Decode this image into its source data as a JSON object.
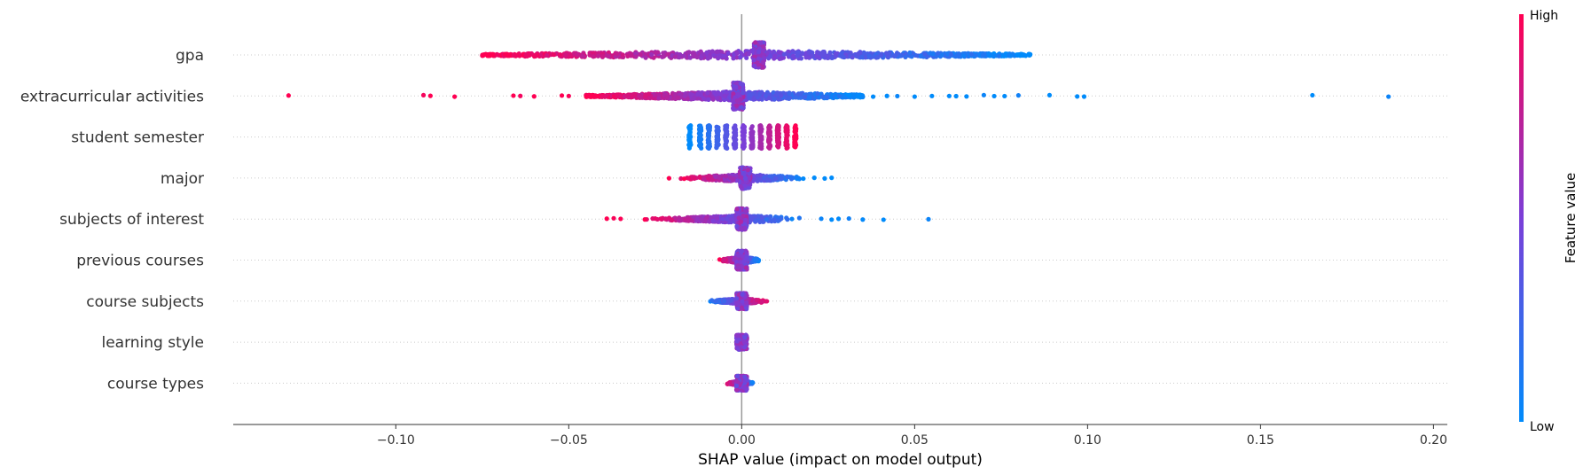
{
  "chart_data": {
    "type": "scatter",
    "subtype": "shap-beeswarm",
    "title": "",
    "xlabel": "SHAP value (impact on model output)",
    "xlim": [
      -0.147,
      0.204
    ],
    "xticks": [
      -0.1,
      -0.05,
      0.0,
      0.05,
      0.1,
      0.15,
      0.2
    ],
    "xtick_labels": [
      "−0.10",
      "−0.05",
      "0.00",
      "0.05",
      "0.10",
      "0.15",
      "0.20"
    ],
    "zero_line": 0.0,
    "grid": false,
    "colorbar": {
      "title": "Feature value",
      "high_label": "High",
      "low_label": "Low",
      "low_color": "#008bfb",
      "high_color": "#ff0052"
    },
    "features": [
      {
        "name": "gpa",
        "min": -0.075,
        "max": 0.084,
        "mode": "linear",
        "extra": [],
        "cluster_at": 0.005,
        "spread": 0.95
      },
      {
        "name": "extracurricular activities",
        "min": -0.045,
        "max": 0.035,
        "mode": "linear",
        "extra": [
          -0.131,
          -0.092,
          -0.09,
          -0.083,
          -0.066,
          -0.064,
          -0.06,
          -0.052,
          -0.05,
          -0.043,
          -0.039,
          0.038,
          0.042,
          0.045,
          0.05,
          0.055,
          0.06,
          0.062,
          0.065,
          0.07,
          0.073,
          0.076,
          0.08,
          0.089,
          0.097,
          0.099,
          0.165,
          0.187
        ],
        "cluster_at": -0.001,
        "spread": 1.0
      },
      {
        "name": "student semester",
        "min": -0.015,
        "max": 0.016,
        "mode": "bands",
        "bands": [
          -0.015,
          -0.012,
          -0.0095,
          -0.007,
          -0.0045,
          -0.002,
          0.0005,
          0.003,
          0.0055,
          0.008,
          0.0105,
          0.013,
          0.0155
        ],
        "extra": [],
        "cluster_at": 0.0,
        "spread": 0.9
      },
      {
        "name": "major",
        "min": -0.019,
        "max": 0.02,
        "mode": "center",
        "extra": [
          -0.021,
          0.021,
          0.024,
          0.026
        ],
        "cluster_at": 0.001,
        "spread": 0.8
      },
      {
        "name": "subjects of interest",
        "min": -0.03,
        "max": 0.02,
        "mode": "center",
        "extra": [
          -0.039,
          -0.037,
          -0.035,
          -0.028,
          -0.025,
          -0.022,
          0.023,
          0.026,
          0.028,
          0.031,
          0.035,
          0.041,
          0.054
        ],
        "cluster_at": 0.0,
        "spread": 0.8
      },
      {
        "name": "previous courses",
        "min": -0.007,
        "max": 0.006,
        "mode": "center",
        "extra": [],
        "cluster_at": 0.0,
        "spread": 0.7
      },
      {
        "name": "course subjects",
        "min": -0.011,
        "max": 0.008,
        "mode": "split",
        "extra": [],
        "cluster_at": 0.0,
        "spread": 0.6
      },
      {
        "name": "learning style",
        "min": -0.001,
        "max": 0.001,
        "mode": "center",
        "extra": [],
        "cluster_at": 0.0,
        "spread": 0.55
      },
      {
        "name": "course types",
        "min": -0.005,
        "max": 0.004,
        "mode": "center",
        "extra": [],
        "cluster_at": 0.0,
        "spread": 0.55
      }
    ]
  }
}
